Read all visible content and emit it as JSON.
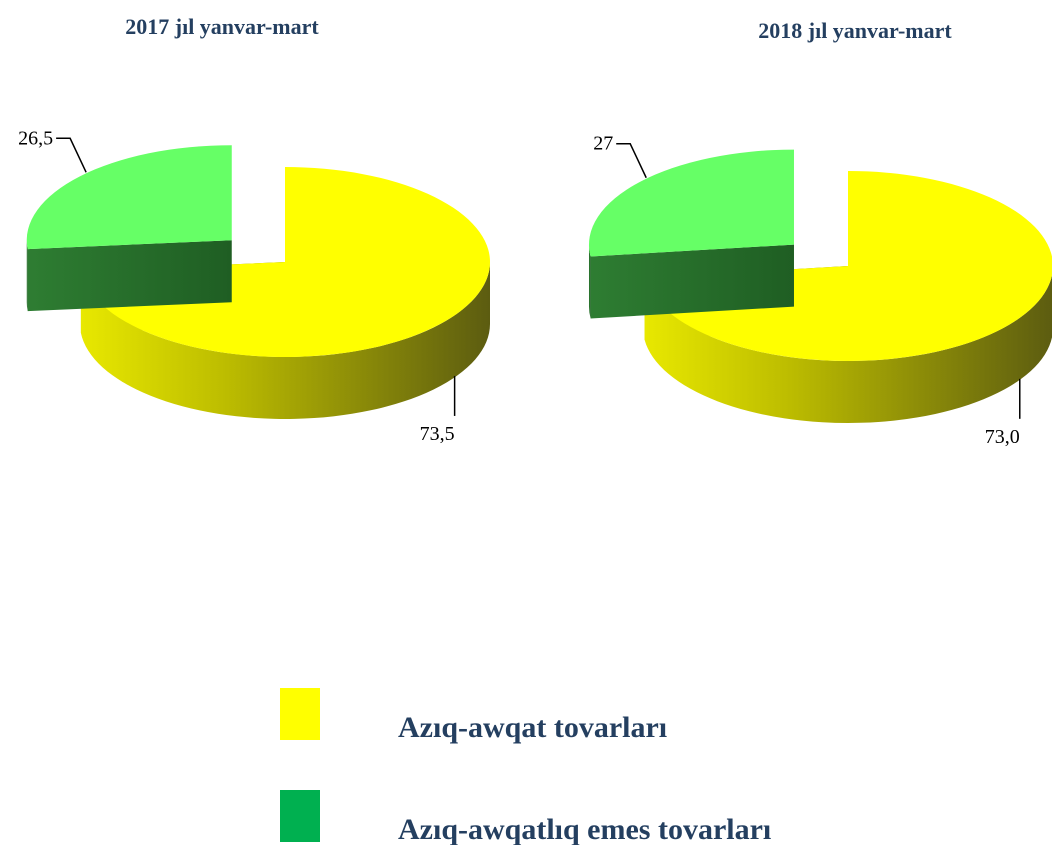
{
  "chart_data": [
    {
      "type": "pie",
      "title": "2017 jıl yanvar-mart",
      "categories": [
        "Azıq-awqat tovarları",
        "Azıq-awqatlıq emes tovarları"
      ],
      "values": [
        73.5,
        26.5
      ],
      "value_labels": [
        "73,5",
        "26,5"
      ],
      "colors": [
        "#ffff00",
        "#66ff66"
      ]
    },
    {
      "type": "pie",
      "title": "2018 jıl yanvar-mart",
      "categories": [
        "Azıq-awqat tovarları",
        "Azıq-awqatlıq emes tovarları"
      ],
      "values": [
        73.0,
        27
      ],
      "value_labels": [
        "73,0",
        "27"
      ],
      "colors": [
        "#ffff00",
        "#66ff66"
      ]
    }
  ],
  "legend_colors": [
    "#ffff00",
    "#00b050"
  ]
}
